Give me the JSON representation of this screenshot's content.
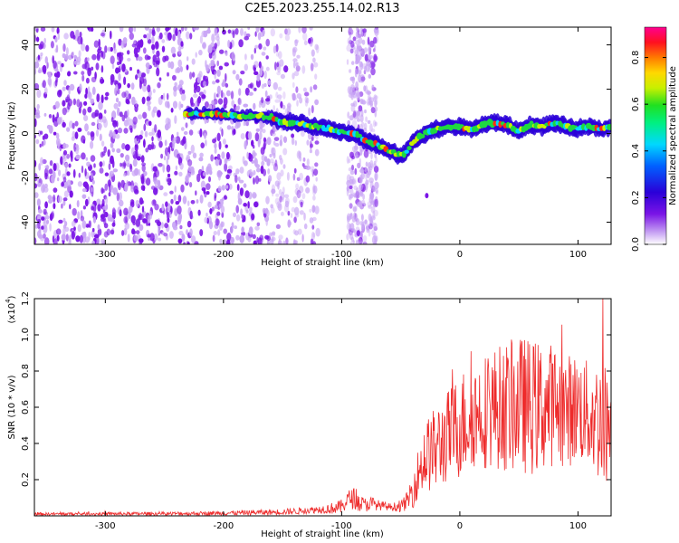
{
  "title": "C2E5.2023.255.14.02.R13",
  "colors": {
    "snr_line": "#ee2b2b",
    "ridge": "#1fd840",
    "noise": "#7a14e6",
    "noise_light": "#c9a6f5",
    "ridge_edge": "#2a00d8"
  },
  "chart_data": [
    {
      "id": "spectrogram",
      "type": "heatmap",
      "xlabel": "Height of straight line (km)",
      "ylabel": "Frequency (Hz)",
      "xlim": [
        -360,
        128
      ],
      "ylim": [
        -50,
        48
      ],
      "xticks": [
        -300,
        -200,
        -100,
        0,
        100
      ],
      "yticks": [
        -40,
        -20,
        0,
        20,
        40
      ],
      "colorbar": {
        "label": "Normalized spectral amplitude",
        "range": [
          0.0,
          0.93
        ],
        "ticks": [
          0.0,
          0.2,
          0.4,
          0.6,
          0.8
        ]
      },
      "ridge": {
        "x": [
          -232,
          -210,
          -190,
          -170,
          -158,
          -150,
          -140,
          -130,
          -120,
          -110,
          -100,
          -90,
          -80,
          -70,
          -60,
          -50,
          -45,
          -40,
          -30,
          -20,
          -10,
          0,
          10,
          20,
          30,
          40,
          50,
          60,
          70,
          80,
          90,
          100,
          110,
          120,
          128
        ],
        "freq": [
          9,
          9,
          8,
          8,
          7,
          5,
          5,
          4,
          3,
          2,
          1,
          0,
          -3,
          -5,
          -8,
          -10,
          -8,
          -4,
          0,
          2,
          3,
          3,
          2,
          4,
          5,
          4,
          1,
          4,
          3,
          5,
          3,
          2,
          3,
          2,
          3
        ]
      }
    },
    {
      "id": "snr",
      "type": "line",
      "xlabel": "Height of straight line (km)",
      "ylabel": "SNR (10 * v/v)",
      "yscale_label": "(x10",
      "yscale_exp": "4",
      "yscale_close": ")",
      "xlim": [
        -360,
        128
      ],
      "ylim": [
        0,
        1.2
      ],
      "xticks": [
        -300,
        -200,
        -100,
        0,
        100
      ],
      "yticks": [
        0.2,
        0.4,
        0.6,
        0.8,
        1.0,
        1.2
      ],
      "ytick_labels": [
        "0.2",
        "0.4",
        "0.6",
        "0.8",
        "1.0",
        "1.2"
      ],
      "envelope": {
        "x": [
          -360,
          -250,
          -200,
          -160,
          -140,
          -120,
          -110,
          -100,
          -95,
          -90,
          -85,
          -80,
          -75,
          -70,
          -60,
          -50,
          -45,
          -40,
          -35,
          -30,
          -25,
          -20,
          -10,
          0,
          10,
          20,
          30,
          40,
          50,
          60,
          70,
          80,
          90,
          100,
          110,
          120,
          128
        ],
        "mean": [
          0.01,
          0.012,
          0.015,
          0.02,
          0.025,
          0.035,
          0.04,
          0.05,
          0.09,
          0.1,
          0.07,
          0.06,
          0.07,
          0.06,
          0.05,
          0.05,
          0.08,
          0.14,
          0.24,
          0.32,
          0.35,
          0.37,
          0.44,
          0.5,
          0.56,
          0.58,
          0.6,
          0.6,
          0.62,
          0.6,
          0.6,
          0.62,
          0.58,
          0.6,
          0.55,
          0.52,
          0.5
        ],
        "amp": [
          0.008,
          0.01,
          0.012,
          0.015,
          0.018,
          0.02,
          0.03,
          0.04,
          0.05,
          0.06,
          0.05,
          0.04,
          0.04,
          0.03,
          0.02,
          0.03,
          0.05,
          0.1,
          0.14,
          0.2,
          0.22,
          0.24,
          0.26,
          0.3,
          0.3,
          0.32,
          0.34,
          0.36,
          0.38,
          0.38,
          0.36,
          0.34,
          0.32,
          0.3,
          0.3,
          0.36,
          0.3
        ]
      },
      "peak": {
        "x": 121,
        "y": 1.2
      }
    }
  ]
}
